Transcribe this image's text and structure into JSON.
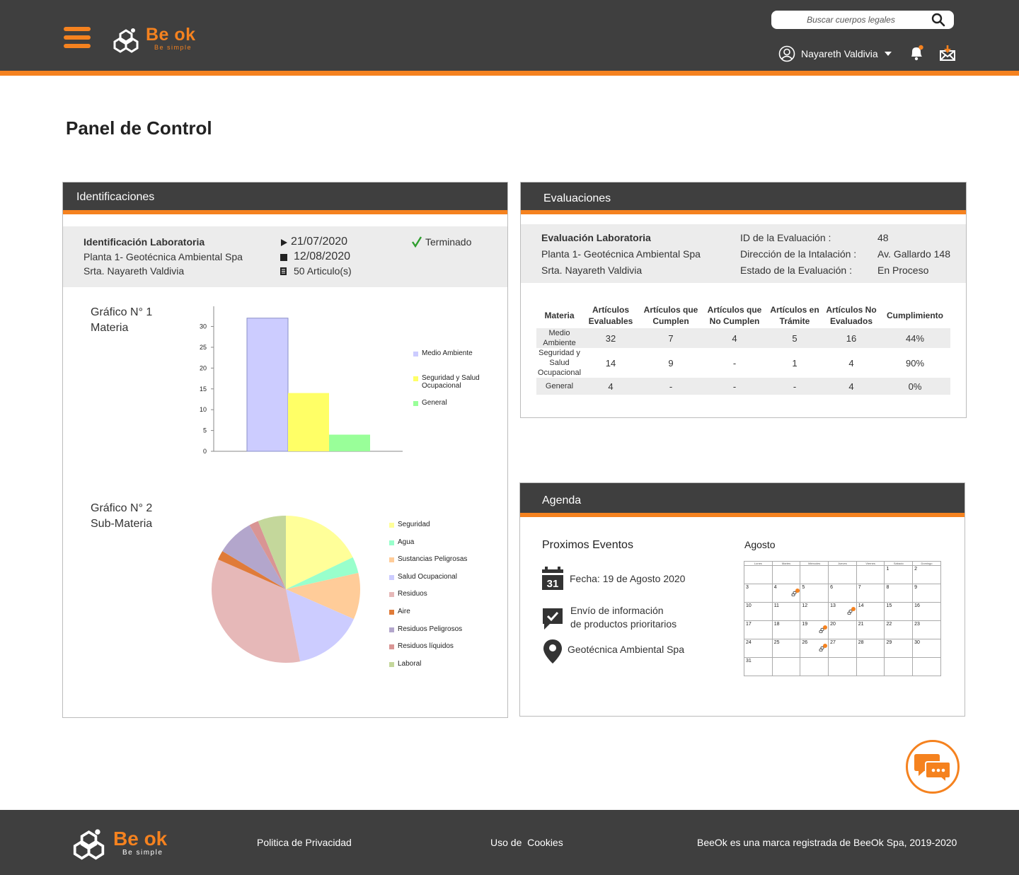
{
  "header": {
    "logo_text": "Be ok",
    "logo_sub": "Be simple",
    "search_placeholder": "Buscar cuerpos legales",
    "user_name": "Nayareth Valdivia",
    "colors": {
      "bar": "#3f3f3f",
      "accent": "#f5821f"
    }
  },
  "page": {
    "title": "Panel de Control"
  },
  "identificaciones": {
    "title": "Identificaciones",
    "name": "Identificación Laboratoria",
    "plant": "Planta 1- Geotécnica Ambiental Spa",
    "person": "Srta. Nayareth Valdivia",
    "start_date": "21/07/2020",
    "end_date": "12/08/2020",
    "articles": "50 Articulo(s)",
    "status": "Terminado",
    "chart1_label_1": "Gráfico N° 1",
    "chart1_label_2": "Materia",
    "chart2_label_1": "Gráfico N° 2",
    "chart2_label_2": "Sub-Materia"
  },
  "chart_data": [
    {
      "type": "bar",
      "title": "",
      "xlabel": "",
      "ylabel": "",
      "ylim": [
        0,
        34
      ],
      "yticks": [
        0,
        5,
        10,
        15,
        20,
        25,
        30
      ],
      "series": [
        {
          "name": "Medio Ambiente",
          "values": [
            32
          ],
          "color": "#ccccff"
        },
        {
          "name": "Seguridad y Salud Ocupacional",
          "values": [
            14
          ],
          "color": "#ffff66"
        },
        {
          "name": "General",
          "values": [
            4
          ],
          "color": "#99ff99"
        }
      ],
      "legend": "right"
    },
    {
      "type": "pie",
      "title": "",
      "slices": [
        {
          "name": "Seguridad",
          "value": 17.5,
          "color": "#ffff99"
        },
        {
          "name": "Agua",
          "value": 3.5,
          "color": "#99ffcc"
        },
        {
          "name": "Sustancias Peligrosas",
          "value": 10,
          "color": "#ffcc99"
        },
        {
          "name": "Salud Ocupacional",
          "value": 15,
          "color": "#ccccff"
        },
        {
          "name": "Residuos",
          "value": 34,
          "color": "#e6b8b8"
        },
        {
          "name": "Aire",
          "value": 2,
          "color": "#e07b39"
        },
        {
          "name": "Residuos Peligrosos",
          "value": 8,
          "color": "#b3a6cc"
        },
        {
          "name": "Residuos líquidos",
          "value": 2,
          "color": "#d99594"
        },
        {
          "name": "Laboral",
          "value": 6,
          "color": "#c4d79b"
        }
      ],
      "legend": "right"
    }
  ],
  "evaluaciones": {
    "title": "Evaluaciones",
    "name": "Evaluación Laboratoria",
    "plant": "Planta 1- Geotécnica Ambiental Spa",
    "person": "Srta. Nayareth Valdivia",
    "id_label": "ID de la Evaluación :",
    "id_value": "48",
    "address_label": "Dirección de la Intalación :",
    "address_value": "Av. Gallardo 148",
    "state_label": "Estado de la Evaluación :",
    "state_value": "En Proceso",
    "table": {
      "headers": [
        "Materia",
        "Artículos Evaluables",
        "Artículos que Cumplen",
        "Artículos que No Cumplen",
        "Artículos en Trámite",
        "Artículos No Evaluados",
        "Cumplimiento"
      ],
      "rows": [
        [
          "Medio Ambiente",
          "32",
          "7",
          "4",
          "5",
          "16",
          "44%"
        ],
        [
          "Seguridad y Salud Ocupacional",
          "14",
          "9",
          "-",
          "1",
          "4",
          "90%"
        ],
        [
          "General",
          "4",
          "-",
          "-",
          "-",
          "4",
          "0%"
        ]
      ]
    }
  },
  "agenda": {
    "title": "Agenda",
    "upcoming": "Proximos Eventos",
    "event_date": "Fecha: 19 de Agosto 2020",
    "event_desc_1": "Envío de información",
    "event_desc_2": "de productos prioritarios",
    "event_place": "Geotécnica Ambiental Spa",
    "calendar_icon_day": "31",
    "month": "Agosto",
    "weekdays": [
      "Lunes",
      "Martes",
      "Miércoles",
      "Jueves",
      "Viernes",
      "Sábado",
      "Domingo"
    ],
    "weeks": [
      [
        "",
        "",
        "",
        "",
        "",
        "1",
        "2"
      ],
      [
        "3",
        "4",
        "5",
        "6",
        "7",
        "8",
        "9"
      ],
      [
        "10",
        "11",
        "12",
        "13",
        "14",
        "15",
        "16"
      ],
      [
        "17",
        "18",
        "19",
        "20",
        "21",
        "22",
        "23"
      ],
      [
        "24",
        "25",
        "26",
        "27",
        "28",
        "29",
        "30"
      ],
      [
        "31",
        "",
        "",
        "",
        "",
        "",
        ""
      ]
    ],
    "marked_days": [
      "4",
      "13",
      "19",
      "26"
    ]
  },
  "footer": {
    "privacy": "Politica de Privacidad",
    "cookies": "Uso de  Cookies",
    "copyright": "BeeOk es una marca registrada de BeeOk Spa, 2019-2020",
    "logo_text": "Be ok",
    "logo_sub": "Be simple"
  }
}
